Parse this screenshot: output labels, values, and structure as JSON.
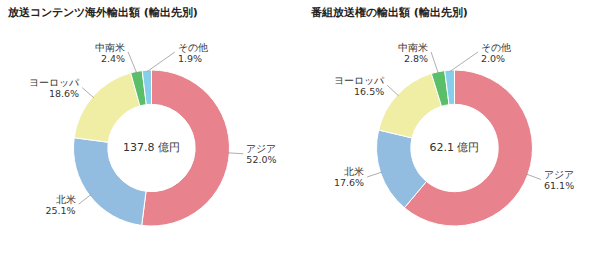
{
  "chart_data": [
    {
      "type": "donut",
      "title": "放送コンテンツ海外輸出額 (輸出先別)",
      "annotations": [
        "137.8 億円"
      ],
      "categories": [
        "アジア",
        "北米",
        "ヨーロッパ",
        "中南米",
        "その他"
      ],
      "values": [
        52.0,
        25.1,
        18.6,
        2.4,
        1.9
      ],
      "value_labels": [
        "52.0%",
        "25.1%",
        "18.6%",
        "2.4%",
        "1.9%"
      ],
      "colors": [
        "#E8838E",
        "#93BDE0",
        "#F0EDA5",
        "#5BBF6A",
        "#87CEEB"
      ]
    },
    {
      "type": "donut",
      "title": "番組放送権の輸出額 (輸出先別)",
      "annotations": [
        "62.1 億円"
      ],
      "categories": [
        "アジア",
        "北米",
        "ヨーロッパ",
        "中南米",
        "その他"
      ],
      "values": [
        61.1,
        17.6,
        16.5,
        2.8,
        2.0
      ],
      "value_labels": [
        "61.1%",
        "17.6%",
        "16.5%",
        "2.8%",
        "2.0%"
      ],
      "colors": [
        "#E8838E",
        "#93BDE0",
        "#F0EDA5",
        "#5BBF6A",
        "#87CEEB"
      ]
    }
  ]
}
